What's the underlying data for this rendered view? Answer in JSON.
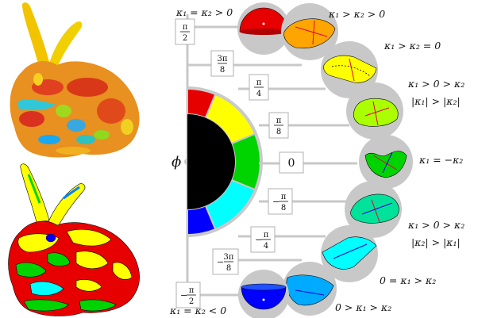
{
  "colors": {
    "red": "#e60000",
    "orange": "#ffa500",
    "yellow": "#ffff00",
    "yellow_green": "#aaff00",
    "green": "#00d400",
    "teal": "#00e29a",
    "cyan": "#00ffff",
    "sky": "#00aaff",
    "blue": "#0000ff",
    "black": "#000000",
    "grey": "#c8c8c8",
    "label_fill": "#ffffff"
  },
  "axis_label": "ϕ",
  "angle_labels": [
    {
      "key": "a_pi2",
      "num": "π",
      "den": "2",
      "prefix": ""
    },
    {
      "key": "a_3pi8",
      "num": "3π",
      "den": "8",
      "prefix": ""
    },
    {
      "key": "a_pi4",
      "num": "π",
      "den": "4",
      "prefix": ""
    },
    {
      "key": "a_pi8",
      "num": "π",
      "den": "8",
      "prefix": ""
    },
    {
      "key": "a_0",
      "num": "",
      "den": "",
      "prefix": "0"
    },
    {
      "key": "a_mpi8",
      "num": "π",
      "den": "8",
      "prefix": "−"
    },
    {
      "key": "a_mpi4",
      "num": "π",
      "den": "4",
      "prefix": "−"
    },
    {
      "key": "a_m3pi8",
      "num": "3π",
      "den": "8",
      "prefix": "−"
    },
    {
      "key": "a_mpi2",
      "num": "π",
      "den": "2",
      "prefix": "−"
    }
  ],
  "condition_labels": [
    {
      "key": "c1",
      "text": "κ₁ = κ₂ > 0"
    },
    {
      "key": "c2",
      "text": "κ₁ > κ₂ > 0"
    },
    {
      "key": "c3",
      "text": "κ₁ > κ₂ = 0"
    },
    {
      "key": "c4a",
      "text": "κ₁ > 0 > κ₂"
    },
    {
      "key": "c4b",
      "text": "|κ₁| > |κ₂|"
    },
    {
      "key": "c5",
      "text": "κ₁ = −κ₂"
    },
    {
      "key": "c6a",
      "text": "κ₁ > 0 > κ₂"
    },
    {
      "key": "c6b",
      "text": "|κ₂| > |κ₁|"
    },
    {
      "key": "c7",
      "text": "0 = κ₁ > κ₂"
    },
    {
      "key": "c8",
      "text": "0 > κ₁ > κ₂"
    },
    {
      "key": "c9",
      "text": "κ₁ = κ₂ < 0"
    }
  ]
}
